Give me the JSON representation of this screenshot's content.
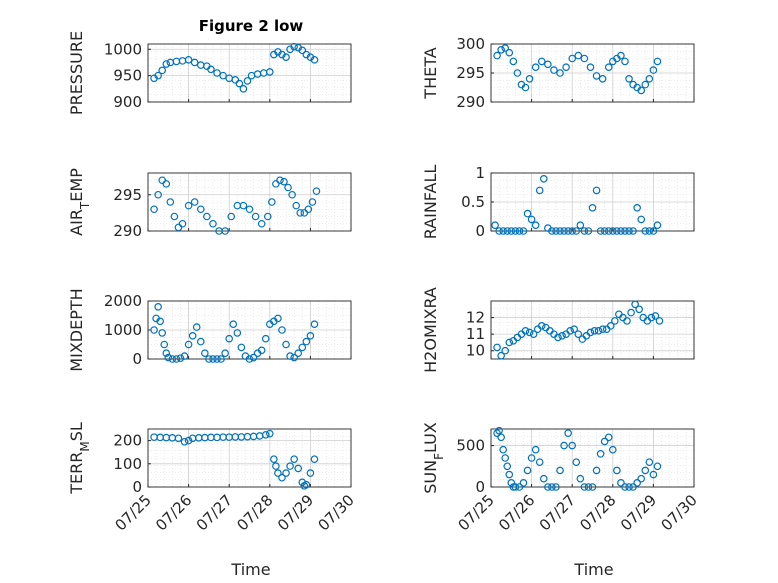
{
  "figure": {
    "title": "Figure 2 low",
    "xlabel": "Time"
  },
  "colors": {
    "marker": "#0072BD",
    "axis": "#262626",
    "grid": "#dcdcdc"
  },
  "chart_data": [
    {
      "type": "scatter",
      "ylabel": "PRESSURE",
      "ylim": [
        900,
        1010
      ],
      "yticks": [
        900,
        950,
        1000
      ],
      "xlim": [
        "07/25",
        "07/30"
      ],
      "xticks": [
        "07/25",
        "07/26",
        "07/27",
        "07/28",
        "07/29",
        "07/30"
      ],
      "series": [
        {
          "x": [
            25.15,
            25.25,
            25.35,
            25.45,
            25.55,
            25.7,
            25.85,
            26.0,
            26.15,
            26.3,
            26.45,
            26.55,
            26.7,
            26.85,
            27.0,
            27.15,
            27.25,
            27.35,
            27.45,
            27.55,
            27.7,
            27.85,
            28.0,
            28.1,
            28.2,
            28.3,
            28.4,
            28.5,
            28.6,
            28.7,
            28.8,
            28.9,
            29.0,
            29.1
          ],
          "y": [
            945,
            950,
            960,
            972,
            975,
            977,
            978,
            980,
            975,
            970,
            968,
            962,
            955,
            950,
            945,
            942,
            935,
            925,
            940,
            950,
            953,
            955,
            957,
            990,
            995,
            990,
            985,
            1000,
            1005,
            1003,
            998,
            990,
            985,
            980
          ]
        }
      ]
    },
    {
      "type": "scatter",
      "ylabel": "THETA",
      "ylim": [
        290,
        300
      ],
      "yticks": [
        290,
        295,
        300
      ],
      "xlim": [
        "07/25",
        "07/30"
      ],
      "xticks": [
        "07/25",
        "07/26",
        "07/27",
        "07/28",
        "07/29",
        "07/30"
      ],
      "series": [
        {
          "x": [
            25.15,
            25.25,
            25.35,
            25.45,
            25.55,
            25.65,
            25.75,
            25.85,
            25.95,
            26.1,
            26.25,
            26.4,
            26.55,
            26.7,
            26.85,
            27.0,
            27.15,
            27.3,
            27.45,
            27.6,
            27.75,
            27.9,
            28.0,
            28.1,
            28.2,
            28.3,
            28.4,
            28.5,
            28.6,
            28.7,
            28.8,
            28.9,
            29.0,
            29.1
          ],
          "y": [
            298,
            299,
            299.3,
            298.5,
            297,
            295,
            293,
            292.5,
            294,
            296,
            297,
            296.5,
            295.5,
            295,
            296,
            297.5,
            298,
            297.5,
            296,
            294.5,
            294,
            296,
            297,
            297.5,
            298,
            297,
            294,
            293,
            292.5,
            292,
            293,
            294,
            295.5,
            297
          ]
        }
      ]
    },
    {
      "type": "scatter",
      "ylabel": "AIR_TEMP",
      "ylim": [
        290,
        298
      ],
      "yticks": [
        290,
        295
      ],
      "xlim": [
        "07/25",
        "07/30"
      ],
      "xticks": [
        "07/25",
        "07/26",
        "07/27",
        "07/28",
        "07/29",
        "07/30"
      ],
      "series": [
        {
          "x": [
            25.15,
            25.25,
            25.35,
            25.45,
            25.55,
            25.65,
            25.75,
            25.85,
            26.0,
            26.15,
            26.3,
            26.45,
            26.6,
            26.75,
            26.9,
            27.05,
            27.2,
            27.35,
            27.5,
            27.65,
            27.8,
            27.95,
            28.05,
            28.15,
            28.25,
            28.35,
            28.45,
            28.55,
            28.65,
            28.75,
            28.85,
            28.95,
            29.05,
            29.15
          ],
          "y": [
            293,
            295,
            297,
            296.5,
            294,
            292,
            290.5,
            291,
            293.5,
            294,
            293,
            292,
            291,
            290,
            290,
            292,
            293.5,
            293.5,
            293,
            292,
            291,
            292,
            294,
            296.5,
            297,
            296.8,
            296,
            295,
            293.5,
            292.5,
            292.5,
            293,
            294,
            295.5
          ]
        }
      ]
    },
    {
      "type": "scatter",
      "ylabel": "RAINFALL",
      "ylim": [
        0,
        1
      ],
      "yticks": [
        0,
        0.5,
        1
      ],
      "xlim": [
        "07/25",
        "07/30"
      ],
      "xticks": [
        "07/25",
        "07/26",
        "07/27",
        "07/28",
        "07/29",
        "07/30"
      ],
      "series": [
        {
          "x": [
            25.1,
            25.2,
            25.3,
            25.4,
            25.5,
            25.6,
            25.7,
            25.8,
            25.9,
            26.0,
            26.1,
            26.2,
            26.3,
            26.4,
            26.5,
            26.6,
            26.7,
            26.8,
            26.9,
            27.0,
            27.1,
            27.2,
            27.3,
            27.4,
            27.5,
            27.6,
            27.7,
            27.8,
            27.9,
            28.0,
            28.1,
            28.2,
            28.3,
            28.4,
            28.5,
            28.6,
            28.7,
            28.8,
            28.9,
            29.0,
            29.1
          ],
          "y": [
            0.1,
            0,
            0,
            0,
            0,
            0,
            0,
            0,
            0.3,
            0.2,
            0.1,
            0.7,
            0.9,
            0.05,
            0,
            0,
            0,
            0,
            0,
            0,
            0,
            0.1,
            0,
            0,
            0.4,
            0.7,
            0,
            0,
            0,
            0,
            0,
            0,
            0,
            0,
            0,
            0.4,
            0.2,
            0,
            0,
            0,
            0.1
          ]
        }
      ]
    },
    {
      "type": "scatter",
      "ylabel": "MIXDEPTH",
      "ylim": [
        0,
        2000
      ],
      "yticks": [
        0,
        1000,
        2000
      ],
      "xlim": [
        "07/25",
        "07/30"
      ],
      "xticks": [
        "07/25",
        "07/26",
        "07/27",
        "07/28",
        "07/29",
        "07/30"
      ],
      "series": [
        {
          "x": [
            25.15,
            25.2,
            25.25,
            25.3,
            25.35,
            25.4,
            25.45,
            25.5,
            25.6,
            25.7,
            25.8,
            25.9,
            26.0,
            26.1,
            26.2,
            26.3,
            26.4,
            26.5,
            26.6,
            26.7,
            26.8,
            26.9,
            27.0,
            27.1,
            27.2,
            27.3,
            27.4,
            27.5,
            27.6,
            27.7,
            27.8,
            27.9,
            28.0,
            28.1,
            28.2,
            28.3,
            28.4,
            28.5,
            28.6,
            28.7,
            28.8,
            28.9,
            29.0,
            29.1
          ],
          "y": [
            1000,
            1400,
            1800,
            1300,
            900,
            500,
            200,
            50,
            0,
            0,
            30,
            100,
            500,
            800,
            1100,
            600,
            200,
            0,
            0,
            0,
            0,
            200,
            700,
            1200,
            900,
            400,
            100,
            0,
            50,
            200,
            300,
            700,
            1200,
            1300,
            1400,
            1000,
            500,
            100,
            50,
            200,
            400,
            600,
            800,
            1200
          ]
        }
      ]
    },
    {
      "type": "scatter",
      "ylabel": "H2OMIXRA",
      "ylim": [
        9.5,
        13
      ],
      "yticks": [
        10,
        11,
        12
      ],
      "xlim": [
        "07/25",
        "07/30"
      ],
      "xticks": [
        "07/25",
        "07/26",
        "07/27",
        "07/28",
        "07/29",
        "07/30"
      ],
      "series": [
        {
          "x": [
            25.15,
            25.25,
            25.35,
            25.45,
            25.55,
            25.65,
            25.75,
            25.85,
            25.95,
            26.05,
            26.15,
            26.25,
            26.35,
            26.45,
            26.55,
            26.65,
            26.75,
            26.85,
            26.95,
            27.05,
            27.15,
            27.25,
            27.35,
            27.45,
            27.55,
            27.65,
            27.75,
            27.85,
            27.95,
            28.05,
            28.15,
            28.25,
            28.35,
            28.45,
            28.55,
            28.65,
            28.75,
            28.85,
            28.95,
            29.05,
            29.15
          ],
          "y": [
            10.2,
            9.7,
            10,
            10.5,
            10.6,
            10.8,
            11,
            11.2,
            11.1,
            11,
            11.3,
            11.5,
            11.4,
            11.2,
            11,
            10.8,
            10.9,
            11,
            11.2,
            11.3,
            11,
            10.7,
            10.9,
            11.1,
            11.2,
            11.2,
            11.3,
            11.3,
            11.5,
            11.8,
            12.2,
            12,
            11.8,
            12.3,
            12.8,
            12.5,
            12,
            11.8,
            12,
            12.1,
            11.8
          ]
        }
      ]
    },
    {
      "type": "scatter",
      "ylabel": "TERR_MSL",
      "ylim": [
        0,
        250
      ],
      "yticks": [
        0,
        100,
        200
      ],
      "xlim": [
        "07/25",
        "07/30"
      ],
      "xticks": [
        "07/25",
        "07/26",
        "07/27",
        "07/28",
        "07/29",
        "07/30"
      ],
      "series": [
        {
          "x": [
            25.15,
            25.3,
            25.45,
            25.6,
            25.75,
            25.9,
            26.0,
            26.1,
            26.25,
            26.4,
            26.55,
            26.7,
            26.85,
            27.0,
            27.15,
            27.3,
            27.45,
            27.6,
            27.75,
            27.9,
            28.0,
            28.1,
            28.15,
            28.2,
            28.3,
            28.4,
            28.5,
            28.6,
            28.7,
            28.8,
            28.85,
            28.9,
            29.0,
            29.1
          ],
          "y": [
            215,
            214,
            213,
            212,
            210,
            195,
            200,
            210,
            212,
            213,
            214,
            214,
            215,
            215,
            216,
            216,
            217,
            218,
            220,
            225,
            230,
            120,
            90,
            60,
            40,
            60,
            90,
            120,
            80,
            20,
            5,
            10,
            60,
            120
          ]
        }
      ]
    },
    {
      "type": "scatter",
      "ylabel": "SUN_FLUX",
      "ylim": [
        0,
        700
      ],
      "yticks": [
        0,
        500
      ],
      "xlim": [
        "07/25",
        "07/30"
      ],
      "xticks": [
        "07/25",
        "07/26",
        "07/27",
        "07/28",
        "07/29",
        "07/30"
      ],
      "series": [
        {
          "x": [
            25.15,
            25.2,
            25.25,
            25.3,
            25.35,
            25.4,
            25.45,
            25.5,
            25.55,
            25.6,
            25.7,
            25.8,
            25.9,
            26.0,
            26.1,
            26.2,
            26.3,
            26.4,
            26.5,
            26.6,
            26.7,
            26.8,
            26.9,
            27.0,
            27.1,
            27.2,
            27.3,
            27.4,
            27.5,
            27.6,
            27.7,
            27.8,
            27.9,
            28.0,
            28.1,
            28.2,
            28.3,
            28.4,
            28.5,
            28.6,
            28.7,
            28.8,
            28.9,
            29.0,
            29.1
          ],
          "y": [
            650,
            680,
            600,
            450,
            350,
            250,
            150,
            50,
            0,
            0,
            0,
            50,
            200,
            350,
            450,
            300,
            100,
            0,
            0,
            0,
            200,
            500,
            650,
            500,
            300,
            100,
            0,
            0,
            0,
            200,
            400,
            550,
            600,
            450,
            200,
            50,
            0,
            0,
            0,
            50,
            100,
            200,
            300,
            150,
            250
          ]
        }
      ]
    }
  ]
}
